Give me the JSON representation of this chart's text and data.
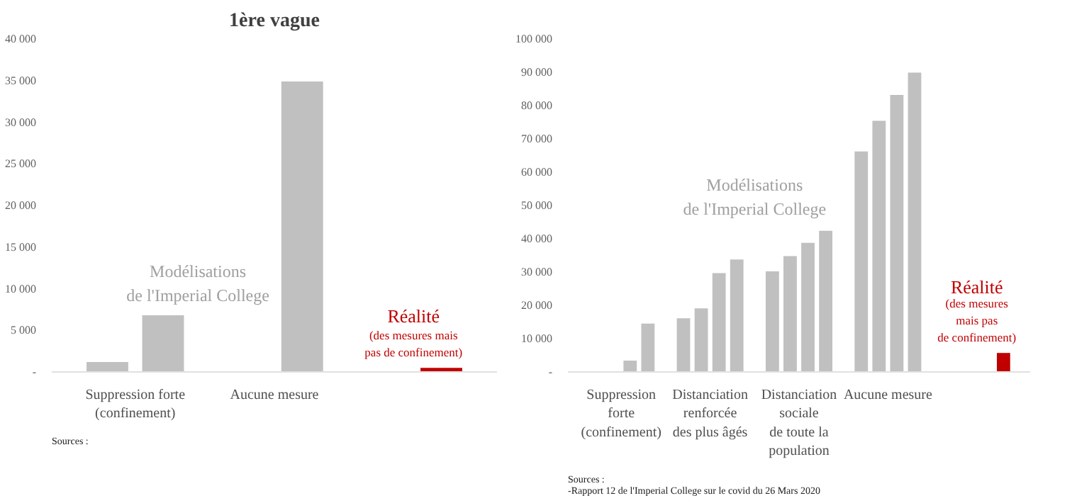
{
  "chart_data": [
    {
      "type": "bar",
      "title": "1ère vague",
      "categories": [
        "Suppression forte\n(confinement)",
        "Aucune mesure",
        null
      ],
      "series": [
        {
          "color": "#c0c0c0",
          "values": [
            1200,
            null,
            null
          ]
        },
        {
          "colors": [
            "#c0c0c0",
            "#c0c0c0",
            "#c00000"
          ],
          "values": [
            6800,
            34900,
            500
          ]
        }
      ],
      "ylim": [
        0,
        40000
      ],
      "yticks": [
        {
          "value": 0,
          "label": "-"
        },
        {
          "value": 5000,
          "label": "5 000"
        },
        {
          "value": 10000,
          "label": "10 000"
        },
        {
          "value": 15000,
          "label": "15 000"
        },
        {
          "value": 20000,
          "label": "20 000"
        },
        {
          "value": 25000,
          "label": "25 000"
        },
        {
          "value": 30000,
          "label": "30 000"
        },
        {
          "value": 35000,
          "label": "35 000"
        },
        {
          "value": 40000,
          "label": "40 000"
        }
      ],
      "grid": false,
      "annotations": [
        "Modélisations\nde l'Imperial College",
        "Réalité",
        "(des mesures mais\npas de confinement)",
        "Sources :"
      ]
    },
    {
      "type": "bar",
      "categories": [
        "Suppression\nforte\n(confinement)",
        "Distanciation\nrenforcée\ndes plus âgés",
        "Distanciation\nsociale\nde toute la\npopulation",
        "Aucune mesure",
        null
      ],
      "series": [
        {
          "color": "#c0c0c0",
          "values": [
            null,
            16100,
            30200,
            66200,
            null
          ]
        },
        {
          "color": "#c0c0c0",
          "values": [
            null,
            19100,
            34800,
            75400,
            null
          ]
        },
        {
          "color": "#c0c0c0",
          "values": [
            3400,
            29700,
            38800,
            83200,
            null
          ]
        },
        {
          "colors": [
            "#c0c0c0",
            "#c0c0c0",
            "#c0c0c0",
            "#c0c0c0",
            "#c00000"
          ],
          "values": [
            14500,
            33800,
            42400,
            89900,
            5700
          ]
        }
      ],
      "ylim": [
        0,
        100000
      ],
      "yticks": [
        {
          "value": 0,
          "label": "-"
        },
        {
          "value": 10000,
          "label": "10 000"
        },
        {
          "value": 20000,
          "label": "20 000"
        },
        {
          "value": 30000,
          "label": "30 000"
        },
        {
          "value": 40000,
          "label": "40 000"
        },
        {
          "value": 50000,
          "label": "50 000"
        },
        {
          "value": 60000,
          "label": "60 000"
        },
        {
          "value": 70000,
          "label": "70 000"
        },
        {
          "value": 80000,
          "label": "80 000"
        },
        {
          "value": 90000,
          "label": "90 000"
        },
        {
          "value": 100000,
          "label": "100 000"
        }
      ],
      "grid": false,
      "annotations": [
        "Modélisations\nde l'Imperial College",
        "Réalité",
        "(des mesures\nmais pas\nde confinement)",
        "Sources :\n-Rapport 12 de l'Imperial College sur le covid du 26 Mars 2020"
      ]
    }
  ]
}
